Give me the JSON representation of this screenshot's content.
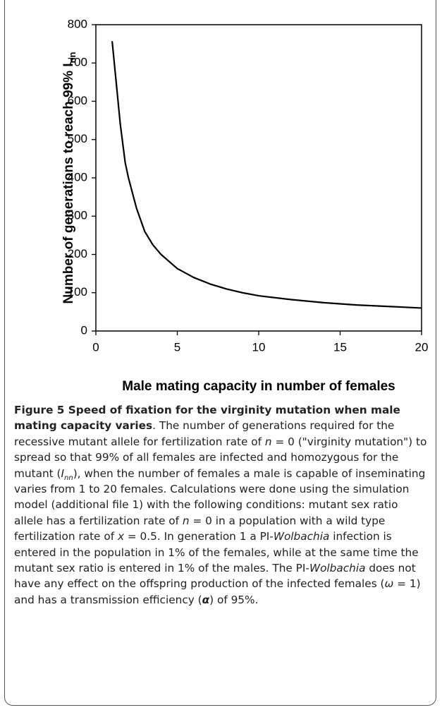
{
  "chart_data": {
    "type": "line",
    "ylabel": {
      "text": "Number of generations to reach 99% I",
      "subscript": "nn"
    },
    "xlabel": "Male mating capacity in number of females",
    "x": [
      1,
      1.5,
      1.8,
      2,
      2.5,
      3,
      3.5,
      4,
      5,
      6,
      7,
      8,
      9,
      10,
      12,
      14,
      16,
      18,
      20
    ],
    "values": [
      757,
      540,
      440,
      400,
      320,
      260,
      225,
      200,
      163,
      140,
      123,
      110,
      100,
      92,
      82,
      74,
      68,
      64,
      60
    ],
    "color": "#000000",
    "xlim": [
      0,
      20
    ],
    "xticks": [
      0,
      5,
      10,
      15,
      20
    ],
    "ylim": [
      0,
      800
    ],
    "yticks": [
      0,
      100,
      200,
      300,
      400,
      500,
      600,
      700,
      800
    ],
    "grid": false
  },
  "caption": {
    "title": "Figure 5 Speed of fixation for the virginity mutation when male mating capacity varies",
    "body": [
      ". The number of generations required for the recessive mutant allele for fertilization rate of ",
      "n",
      " = 0 (\"virginity mutation\") to spread so that 99% of all females are infected and homozygous for the mutant (",
      "I",
      "nn",
      "), when the number of females a male is capable of inseminating varies from 1 to 20 females. Calculations were done using the simulation model (additional file 1) with the following conditions: mutant sex ratio allele has a fertilization rate of ",
      "n",
      " = 0 in a population with a wild type fertilization rate of ",
      "x",
      " = 0.5. In generation 1 a PI-",
      "Wolbachia",
      " infection is entered in the population in 1% of the females, while at the same time the mutant sex ratio is entered in 1% of the males. The PI-",
      "Wolbachia",
      " does not have any effect on the offspring production of the infected females (",
      "ω",
      " = 1) and has a transmission efficiency (",
      "α",
      ") of 95%."
    ]
  }
}
